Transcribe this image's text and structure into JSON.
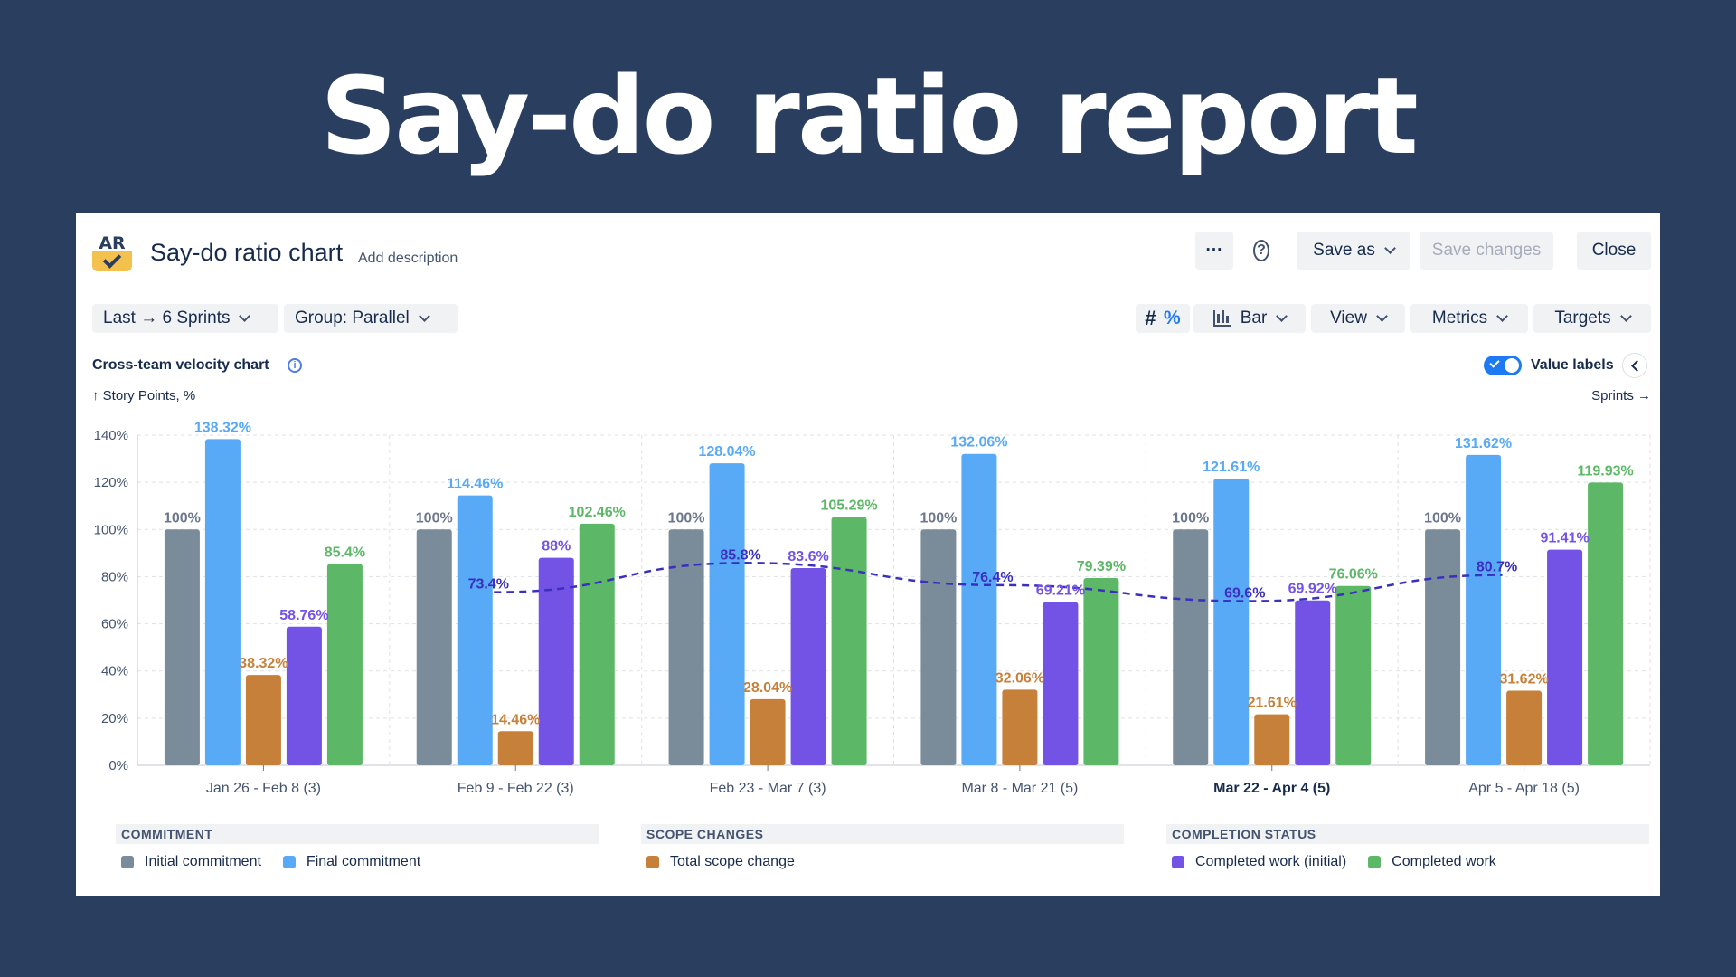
{
  "hero": {
    "title": "Say-do ratio report"
  },
  "header": {
    "logo_text": "AR",
    "title": "Say-do ratio chart",
    "add_description": "Add description",
    "more_label": "···",
    "help_label": "?",
    "save_as": "Save as",
    "save_changes": "Save changes",
    "close": "Close"
  },
  "toolbar": {
    "range": "Last → 6 Sprints",
    "group": "Group: Parallel",
    "hash": "#",
    "percent": "%",
    "chart_type": "Bar",
    "view": "View",
    "metrics": "Metrics",
    "targets": "Targets"
  },
  "section": {
    "title": "Cross-team velocity chart",
    "y_unit": "↑ Story Points, %",
    "x_unit": "Sprints →",
    "value_labels": "Value labels",
    "value_labels_on": true
  },
  "chart_data": {
    "type": "bar",
    "ylim": [
      0,
      140
    ],
    "yticks": [
      "0%",
      "20%",
      "40%",
      "60%",
      "80%",
      "100%",
      "120%",
      "140%"
    ],
    "grid": true,
    "categories": [
      "Jan 26 - Feb 8 (3)",
      "Feb 9 - Feb 22 (3)",
      "Feb 23 - Mar 7 (3)",
      "Mar 8 - Mar 21 (5)",
      "Mar 22 - Apr 4 (5)",
      "Apr 5 - Apr 18 (5)"
    ],
    "highlighted_category": "Mar 22 - Apr 4 (5)",
    "series": [
      {
        "name": "Initial commitment",
        "color": "#7a8b9a",
        "values": [
          100,
          100,
          100,
          100,
          100,
          100
        ],
        "labels": [
          "100%",
          "100%",
          "100%",
          "100%",
          "100%",
          "100%"
        ]
      },
      {
        "name": "Final commitment",
        "color": "#58aaf7",
        "values": [
          138.32,
          114.46,
          128.04,
          132.06,
          121.61,
          131.62
        ],
        "labels": [
          "138.32%",
          "114.46%",
          "128.04%",
          "132.06%",
          "121.61%",
          "131.62%"
        ]
      },
      {
        "name": "Total scope change",
        "color": "#c6803a",
        "values": [
          38.32,
          14.46,
          28.04,
          32.06,
          21.61,
          31.62
        ],
        "labels": [
          "38.32%",
          "14.46%",
          "28.04%",
          "32.06%",
          "21.61%",
          "31.62%"
        ]
      },
      {
        "name": "Completed work (initial)",
        "color": "#7352e6",
        "values": [
          58.76,
          88,
          83.6,
          69.21,
          69.92,
          91.41
        ],
        "labels": [
          "58.76%",
          "88%",
          "83.6%",
          "69.21%",
          "69.92%",
          "91.41%"
        ]
      },
      {
        "name": "Completed work",
        "color": "#5cb866",
        "values": [
          85.4,
          102.46,
          105.29,
          79.39,
          76.06,
          119.93
        ],
        "labels": [
          "85.4%",
          "102.46%",
          "105.29%",
          "79.39%",
          "76.06%",
          "119.93%"
        ]
      }
    ],
    "trend": {
      "color": "#3b2fc0",
      "style": "dashed",
      "points": [
        [
          1,
          73.4
        ],
        [
          2,
          85.8
        ],
        [
          3,
          76.4
        ],
        [
          4,
          69.6
        ],
        [
          5,
          80.7
        ]
      ],
      "labels": [
        "73.4%",
        "85.8%",
        "76.4%",
        "69.6%",
        "80.7%"
      ]
    }
  },
  "legend": {
    "commitment": {
      "title": "COMMITMENT",
      "items": [
        "Initial commitment",
        "Final commitment"
      ]
    },
    "scope": {
      "title": "SCOPE CHANGES",
      "items": [
        "Total scope change"
      ]
    },
    "completion": {
      "title": "COMPLETION STATUS",
      "items": [
        "Completed work (initial)",
        "Completed work"
      ]
    }
  }
}
